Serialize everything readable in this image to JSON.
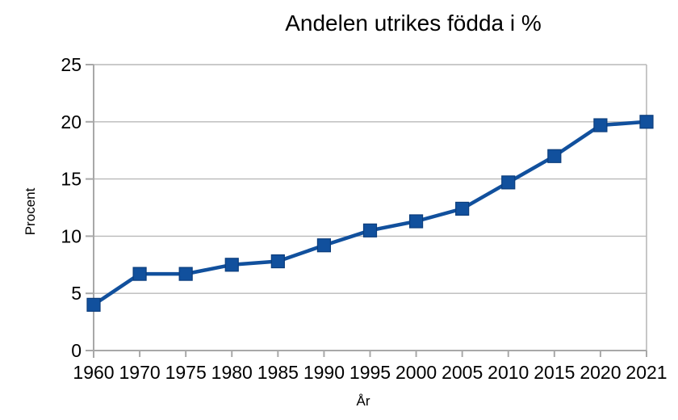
{
  "window": {
    "background": "#ffffff"
  },
  "chart_data": {
    "type": "line",
    "title": "Andelen utrikes födda i %",
    "xlabel": "År",
    "ylabel": "Procent",
    "categories": [
      "1960",
      "1970",
      "1975",
      "1980",
      "1985",
      "1990",
      "1995",
      "2000",
      "2005",
      "2010",
      "2015",
      "2020",
      "2021"
    ],
    "values": [
      4.0,
      6.7,
      6.7,
      7.5,
      7.8,
      9.2,
      10.5,
      11.3,
      12.4,
      14.7,
      17.0,
      19.7,
      20.0
    ],
    "ylim": [
      0,
      25
    ],
    "yticks": [
      0,
      5,
      10,
      15,
      20,
      25
    ],
    "grid": true,
    "legend": "none",
    "marker": "square",
    "colors": {
      "series": "#11509d",
      "marker_border": "#0b3d7c",
      "gridline": "#b9b9b9",
      "axis": "#a8a8a8",
      "text": "#000000",
      "background": "#ffffff"
    }
  }
}
